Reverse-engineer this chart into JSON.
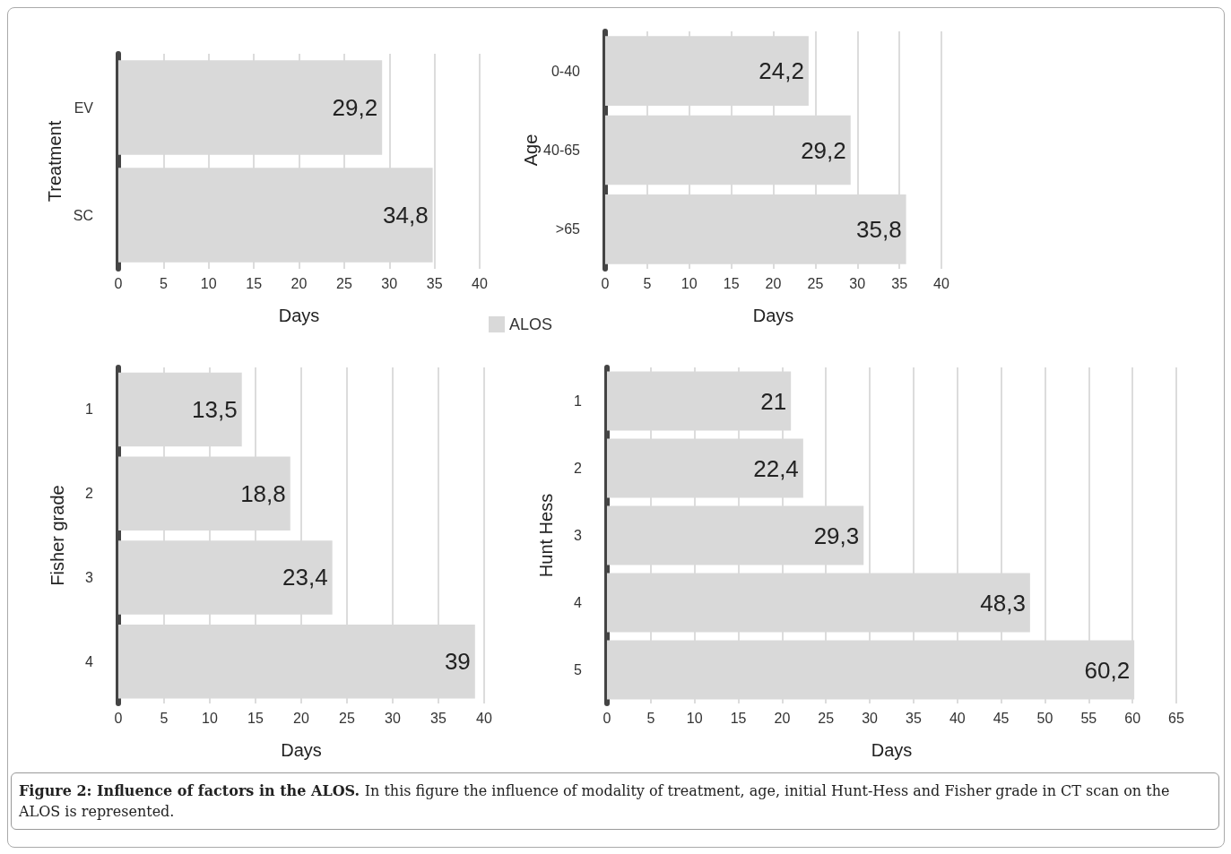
{
  "chart_data": [
    {
      "type": "bar",
      "orientation": "horizontal",
      "ylabel": "Treatment",
      "xlabel": "Days",
      "categories": [
        "EV",
        "SC"
      ],
      "values": [
        29.2,
        34.8
      ],
      "value_labels": [
        "29,2",
        "34,8"
      ],
      "color": "#d9d9d9",
      "xlim": [
        0,
        40
      ],
      "xticks": [
        0,
        5,
        10,
        15,
        20,
        25,
        30,
        35,
        40
      ],
      "grid": "x"
    },
    {
      "type": "bar",
      "orientation": "horizontal",
      "ylabel": "Age",
      "xlabel": "Days",
      "categories": [
        "0-40",
        "40-65",
        ">65"
      ],
      "series": [
        {
          "name": "ALOS",
          "color": "#d9d9d9",
          "values": [
            24.2,
            29.2,
            35.8
          ],
          "value_labels": [
            "24,2",
            "29,2",
            "35,8"
          ]
        }
      ],
      "legend": "bottom left",
      "xlim": [
        0,
        40
      ],
      "xticks": [
        0,
        5,
        10,
        15,
        20,
        25,
        30,
        35,
        40
      ],
      "grid": "x"
    },
    {
      "type": "bar",
      "orientation": "horizontal",
      "ylabel": "Fisher grade",
      "xlabel": "Days",
      "categories": [
        "1",
        "2",
        "3",
        "4"
      ],
      "values": [
        13.5,
        18.8,
        23.4,
        39
      ],
      "value_labels": [
        "13,5",
        "18,8",
        "23,4",
        "39"
      ],
      "color": "#d9d9d9",
      "xlim": [
        0,
        40
      ],
      "xticks": [
        0,
        5,
        10,
        15,
        20,
        25,
        30,
        35,
        40
      ],
      "grid": "x"
    },
    {
      "type": "bar",
      "orientation": "horizontal",
      "ylabel": "Hunt Hess",
      "xlabel": "Days",
      "categories": [
        "1",
        "2",
        "3",
        "4",
        "5"
      ],
      "values": [
        21,
        22.4,
        29.3,
        48.3,
        60.2
      ],
      "value_labels": [
        "21",
        "22,4",
        "29,3",
        "48,3",
        "60,2"
      ],
      "color": "#d9d9d9",
      "xlim": [
        0,
        65
      ],
      "xticks": [
        0,
        5,
        10,
        15,
        20,
        25,
        30,
        35,
        40,
        45,
        50,
        55,
        60,
        65
      ],
      "grid": "x",
      "annotations": [
        "Figure 2: Influence of factors in the ALOS.",
        "In this figure the influence of modality of treatment, age, initial Hunt-Hess and Fisher grade in CT scan on the ALOS is represented."
      ]
    }
  ]
}
